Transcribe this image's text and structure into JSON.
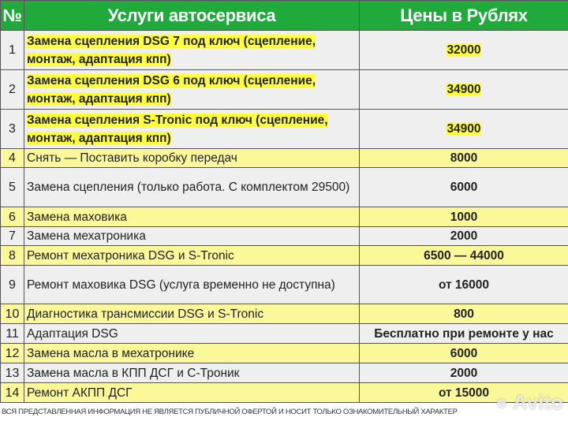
{
  "header": {
    "num": "№",
    "service": "Услуги автосервиса",
    "price": "Цены в Рублях"
  },
  "rows": [
    {
      "n": "1",
      "service": "Замена сцепления DSG 7 под ключ (сцепление, монтаж, адаптация кпп)",
      "price": "32000",
      "highlight": true
    },
    {
      "n": "2",
      "service": "Замена сцепления DSG 6 под ключ (сцепление, монтаж, адаптация кпп)",
      "price": "34900",
      "highlight": true
    },
    {
      "n": "3",
      "service": "Замена сцепления S-Tronic под ключ (сцепление, монтаж, адаптация кпп)",
      "price": "34900",
      "highlight": true
    },
    {
      "n": "4",
      "service": "Снять — Поставить коробку передач",
      "price": "8000"
    },
    {
      "n": "5",
      "service": "Замена сцепления (только работа. С комплектом 29500)",
      "price": "6000"
    },
    {
      "n": "6",
      "service": "Замена маховика",
      "price": "1000"
    },
    {
      "n": "7",
      "service": "Замена мехатроника",
      "price": "2000"
    },
    {
      "n": "8",
      "service": "Ремонт мехатроника DSG и S-Tronic",
      "price": "6500 — 44000"
    },
    {
      "n": "9",
      "service": "Ремонт маховика DSG (услуга временно не доступна)",
      "price": "от 16000"
    },
    {
      "n": "10",
      "service": "Диагностика трансмиссии DSG и S-Tronic",
      "price": "800"
    },
    {
      "n": "11",
      "service": "Адаптация DSG",
      "price": "Бесплатно при ремонте у нас"
    },
    {
      "n": "12",
      "service": "Замена масла в мехатронике",
      "price": "6000"
    },
    {
      "n": "13",
      "service": "Замена масла в КПП ДСГ и С-Троник",
      "price": "2000"
    },
    {
      "n": "14",
      "service": "Ремонт АКПП ДСГ",
      "price": "от 15000"
    }
  ],
  "footer": "ВСЯ ПРЕДСТАВЛЕННАЯ ИНФОРМАЦИЯ НЕ ЯВЛЯЕТСЯ ПУБЛИЧНОЙ ОФЕРТОЙ И НОСИТ ТОЛЬКО ОЗНАКОМИТЕЛЬНЫЙ ХАРАКТЕР",
  "watermark": "Avito",
  "colors": {
    "header": "#1faa3b",
    "row_yellow": "#fbf89a",
    "row_gray": "#efefef",
    "highlight": "#ffff3a"
  }
}
